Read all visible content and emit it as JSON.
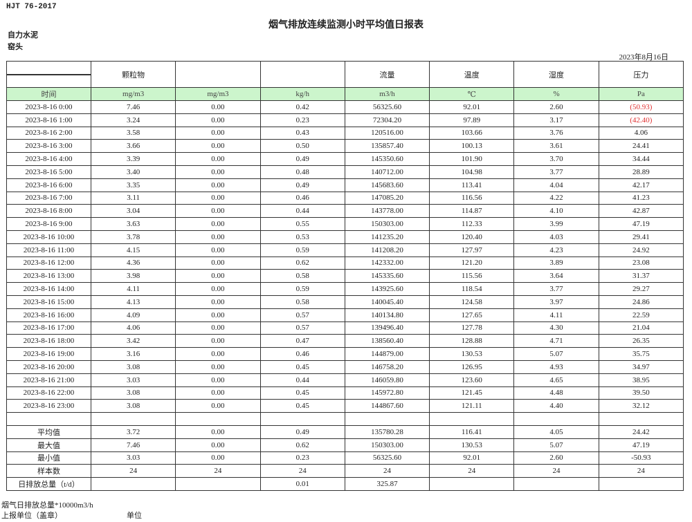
{
  "header": {
    "standard": "HJT  76-2017",
    "title": "烟气排放连续监测小时平均值日报表",
    "company": "自力水泥",
    "unit_name": "窑头",
    "date": "2023年8月16日"
  },
  "columns": [
    {
      "name": "",
      "unit": "时间"
    },
    {
      "name": "颗粒物",
      "unit": "mg/m3"
    },
    {
      "name": "",
      "unit": "mg/m3"
    },
    {
      "name": "",
      "unit": "kg/h"
    },
    {
      "name": "流量",
      "unit": "m3/h"
    },
    {
      "name": "温度",
      "unit": "℃"
    },
    {
      "name": "湿度",
      "unit": "%"
    },
    {
      "name": "压力",
      "unit": "Pa"
    }
  ],
  "rows": [
    [
      "2023-8-16 0:00",
      "7.46",
      "0.00",
      "0.42",
      "56325.60",
      "92.01",
      "2.60",
      "(50.93)"
    ],
    [
      "2023-8-16 1:00",
      "3.24",
      "0.00",
      "0.23",
      "72304.20",
      "97.89",
      "3.17",
      "(42.40)"
    ],
    [
      "2023-8-16 2:00",
      "3.58",
      "0.00",
      "0.43",
      "120516.00",
      "103.66",
      "3.76",
      "4.06"
    ],
    [
      "2023-8-16 3:00",
      "3.66",
      "0.00",
      "0.50",
      "135857.40",
      "100.13",
      "3.61",
      "24.41"
    ],
    [
      "2023-8-16 4:00",
      "3.39",
      "0.00",
      "0.49",
      "145350.60",
      "101.90",
      "3.70",
      "34.44"
    ],
    [
      "2023-8-16 5:00",
      "3.40",
      "0.00",
      "0.48",
      "140712.00",
      "104.98",
      "3.77",
      "28.89"
    ],
    [
      "2023-8-16 6:00",
      "3.35",
      "0.00",
      "0.49",
      "145683.60",
      "113.41",
      "4.04",
      "42.17"
    ],
    [
      "2023-8-16 7:00",
      "3.11",
      "0.00",
      "0.46",
      "147085.20",
      "116.56",
      "4.22",
      "41.23"
    ],
    [
      "2023-8-16 8:00",
      "3.04",
      "0.00",
      "0.44",
      "143778.00",
      "114.87",
      "4.10",
      "42.87"
    ],
    [
      "2023-8-16 9:00",
      "3.63",
      "0.00",
      "0.55",
      "150303.00",
      "112.33",
      "3.99",
      "47.19"
    ],
    [
      "2023-8-16 10:00",
      "3.78",
      "0.00",
      "0.53",
      "141235.20",
      "120.40",
      "4.03",
      "29.41"
    ],
    [
      "2023-8-16 11:00",
      "4.15",
      "0.00",
      "0.59",
      "141208.20",
      "127.97",
      "4.23",
      "24.92"
    ],
    [
      "2023-8-16 12:00",
      "4.36",
      "0.00",
      "0.62",
      "142332.00",
      "121.20",
      "3.89",
      "23.08"
    ],
    [
      "2023-8-16 13:00",
      "3.98",
      "0.00",
      "0.58",
      "145335.60",
      "115.56",
      "3.64",
      "31.37"
    ],
    [
      "2023-8-16 14:00",
      "4.11",
      "0.00",
      "0.59",
      "143925.60",
      "118.54",
      "3.77",
      "29.27"
    ],
    [
      "2023-8-16 15:00",
      "4.13",
      "0.00",
      "0.58",
      "140045.40",
      "124.58",
      "3.97",
      "24.86"
    ],
    [
      "2023-8-16 16:00",
      "4.09",
      "0.00",
      "0.57",
      "140134.80",
      "127.65",
      "4.11",
      "22.59"
    ],
    [
      "2023-8-16 17:00",
      "4.06",
      "0.00",
      "0.57",
      "139496.40",
      "127.78",
      "4.30",
      "21.04"
    ],
    [
      "2023-8-16 18:00",
      "3.42",
      "0.00",
      "0.47",
      "138560.40",
      "128.88",
      "4.71",
      "26.35"
    ],
    [
      "2023-8-16 19:00",
      "3.16",
      "0.00",
      "0.46",
      "144879.00",
      "130.53",
      "5.07",
      "35.75"
    ],
    [
      "2023-8-16 20:00",
      "3.08",
      "0.00",
      "0.45",
      "146758.20",
      "126.95",
      "4.93",
      "34.97"
    ],
    [
      "2023-8-16 21:00",
      "3.03",
      "0.00",
      "0.44",
      "146059.80",
      "123.60",
      "4.65",
      "38.95"
    ],
    [
      "2023-8-16 22:00",
      "3.08",
      "0.00",
      "0.45",
      "145972.80",
      "121.45",
      "4.48",
      "39.50"
    ],
    [
      "2023-8-16 23:00",
      "3.08",
      "0.00",
      "0.45",
      "144867.60",
      "121.11",
      "4.40",
      "32.12"
    ]
  ],
  "negative_cells": [
    [
      0,
      7
    ],
    [
      1,
      7
    ]
  ],
  "negative_color": "#e03030",
  "summary": [
    [
      "平均值",
      "3.72",
      "0.00",
      "0.49",
      "135780.28",
      "116.41",
      "4.05",
      "24.42"
    ],
    [
      "最大值",
      "7.46",
      "0.00",
      "0.62",
      "150303.00",
      "130.53",
      "5.07",
      "47.19"
    ],
    [
      "最小值",
      "3.03",
      "0.00",
      "0.23",
      "56325.60",
      "92.01",
      "2.60",
      "-50.93"
    ],
    [
      "样本数",
      "24",
      "24",
      "24",
      "24",
      "24",
      "24",
      "24"
    ],
    [
      "日排放总量（t/d）",
      "",
      "",
      "0.01",
      "325.87",
      "",
      "",
      ""
    ]
  ],
  "footer": {
    "flue_total": "烟气日排放总量*10000m3/h",
    "reporter": "上报单位（盖章）",
    "unit_label": "单位"
  },
  "colors": {
    "unit_row_bg": "#ccf5cc",
    "border": "#333333"
  }
}
